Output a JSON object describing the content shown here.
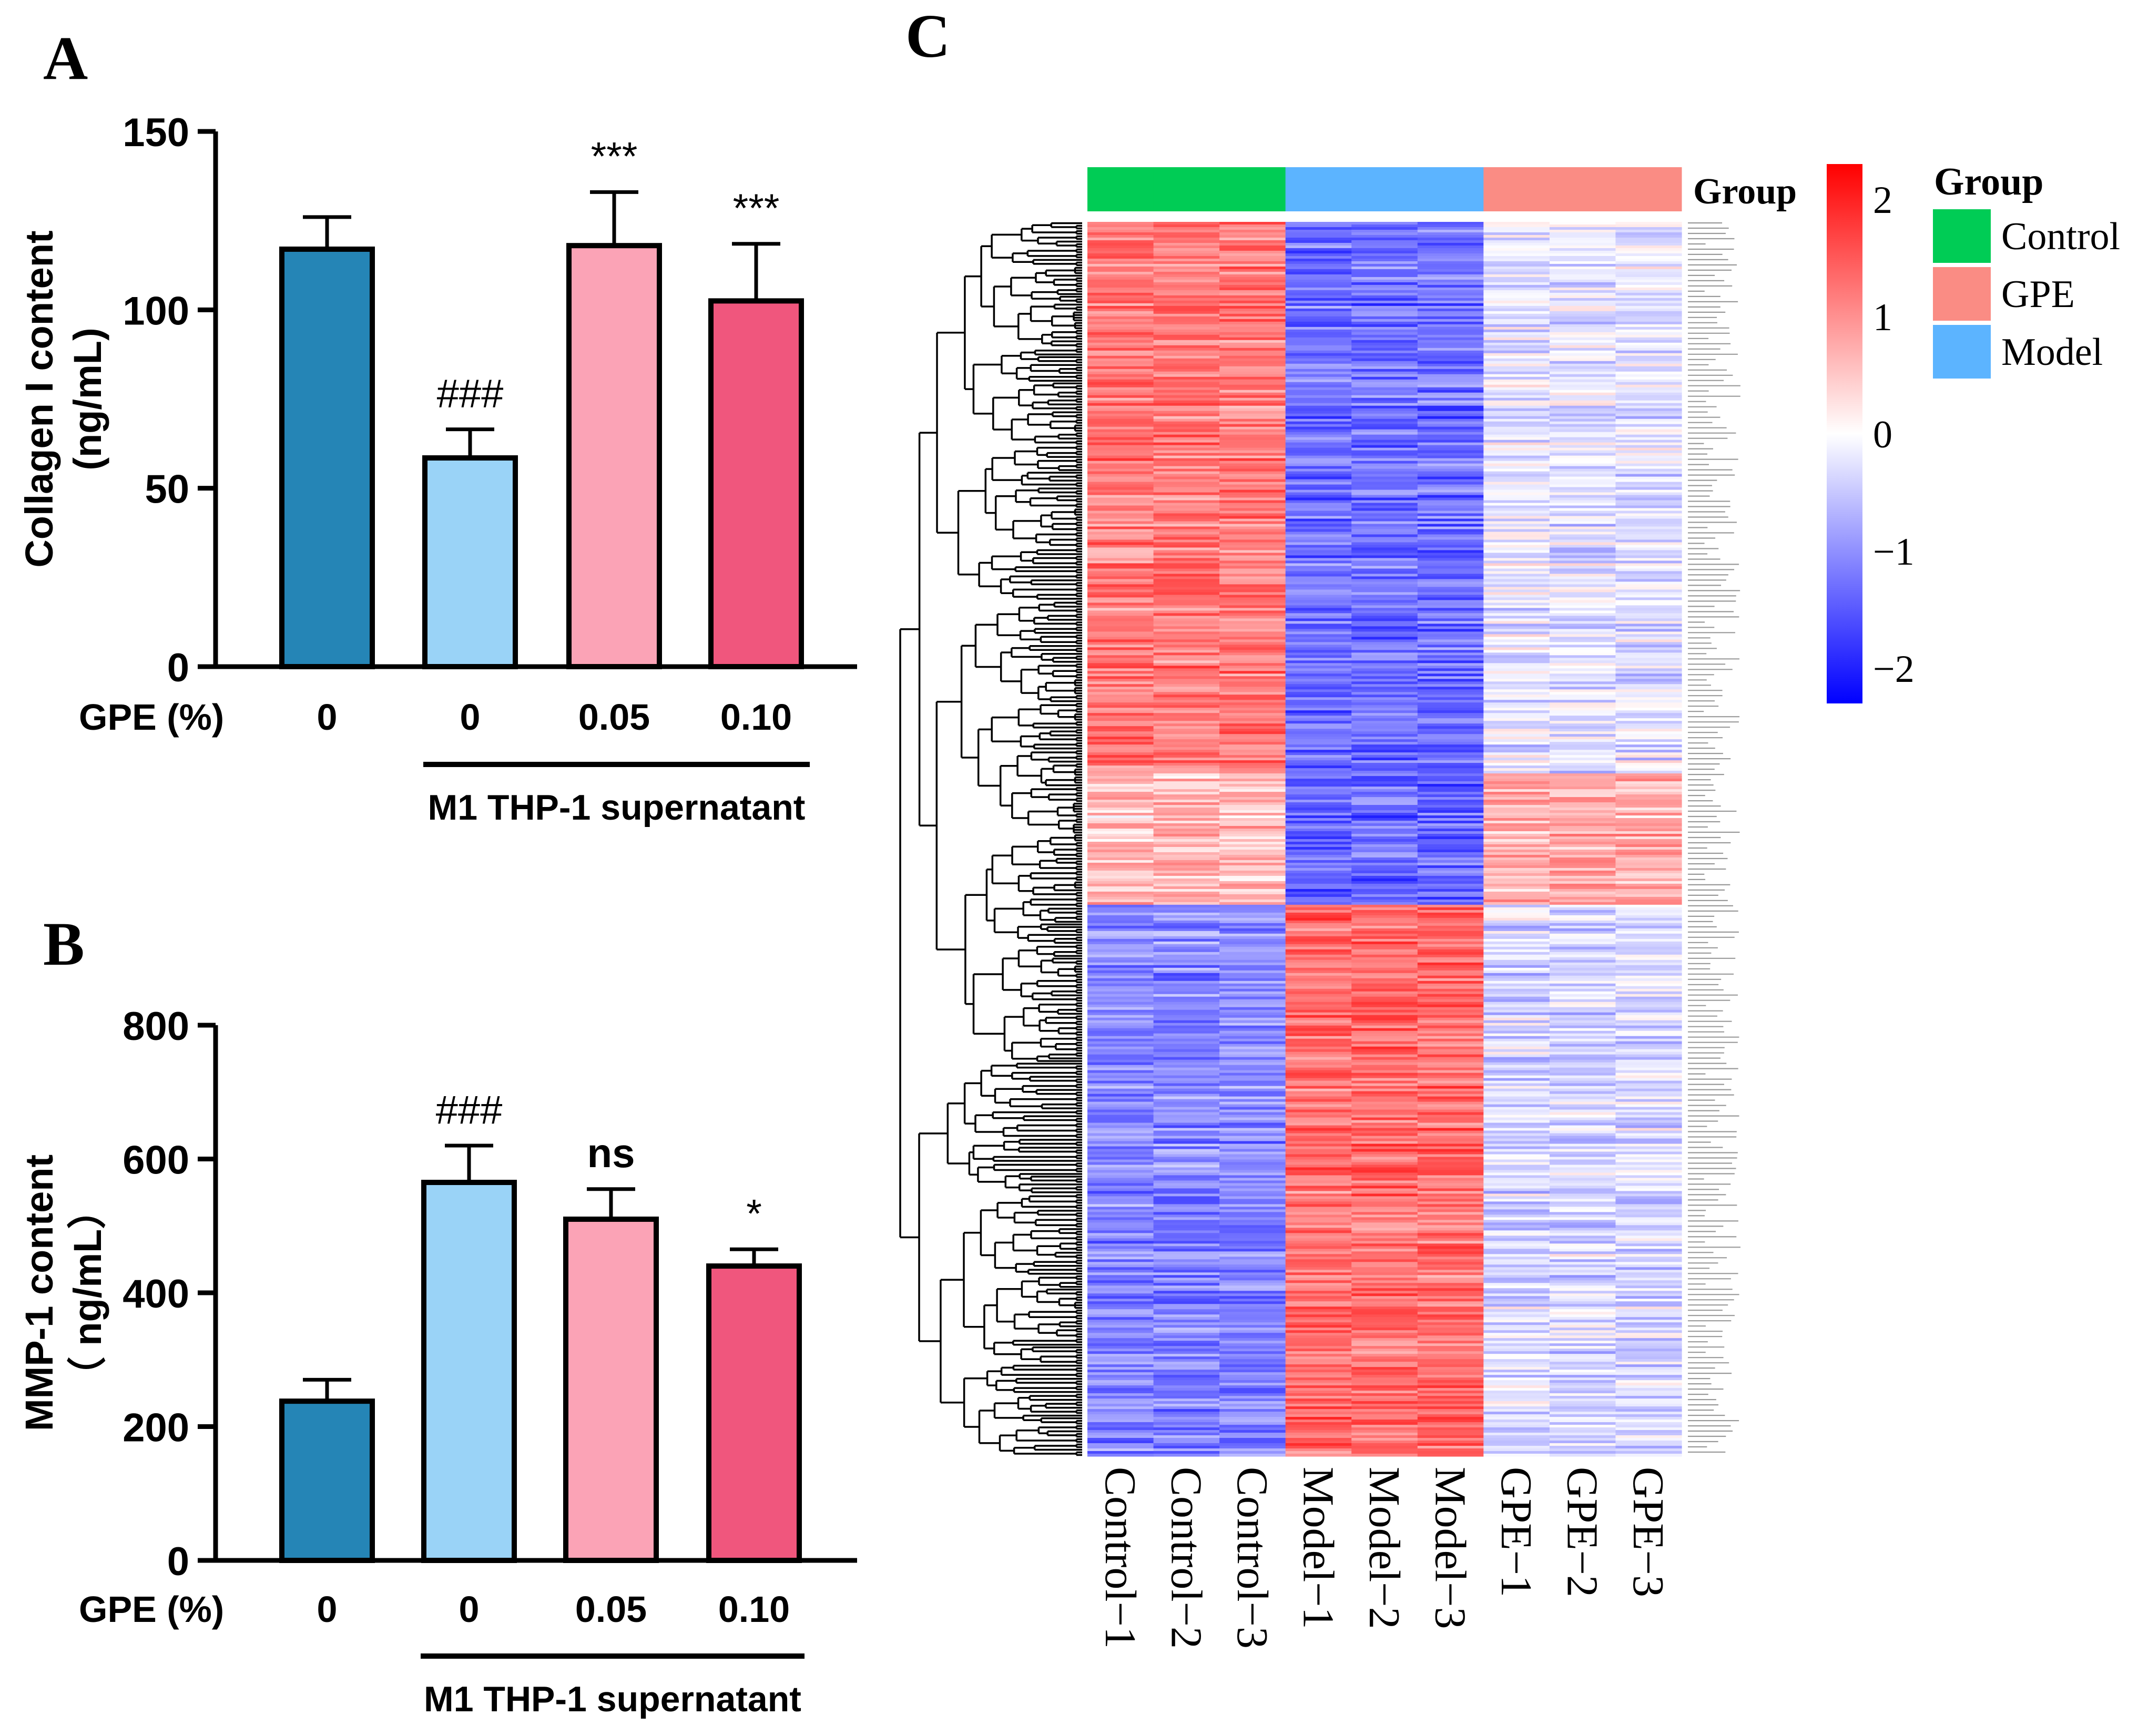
{
  "chart_data": [
    {
      "panel": "A",
      "type": "bar",
      "ylabel_line1": "Collagen I content",
      "ylabel_line2": "(ng/mL)",
      "ylim": [
        0,
        150
      ],
      "yticks": [
        0,
        50,
        100,
        150
      ],
      "xlabel_prefix": "GPE (%)",
      "categories": [
        "0",
        "0",
        "0.05",
        "0.10"
      ],
      "values": [
        117,
        58.5,
        118,
        102.5
      ],
      "errors": [
        9,
        8,
        15,
        16
      ],
      "annotations": [
        "",
        "###",
        "***",
        "***"
      ],
      "bracket_label": "M1 THP-1 supernatant",
      "bar_colors": [
        "#2585B6",
        "#9AD3F7",
        "#FBA3B6",
        "#F0567D"
      ]
    },
    {
      "panel": "B",
      "type": "bar",
      "ylabel_line1": "MMP-1 content",
      "ylabel_line2": "（ ng/mL）",
      "ylim": [
        0,
        800
      ],
      "yticks": [
        0,
        200,
        400,
        600,
        800
      ],
      "xlabel_prefix": "GPE (%)",
      "categories": [
        "0",
        "0",
        "0.05",
        "0.10"
      ],
      "values": [
        238,
        565,
        510,
        440
      ],
      "errors": [
        32,
        55,
        45,
        25
      ],
      "annotations": [
        "",
        "###",
        "ns",
        "*"
      ],
      "bracket_label": "M1 THP-1 supernatant",
      "bar_colors": [
        "#2585B6",
        "#9AD3F7",
        "#FBA3B6",
        "#F0567D"
      ]
    },
    {
      "panel": "C",
      "type": "heatmap",
      "samples": [
        "Control−1",
        "Control−2",
        "Control−3",
        "Model−1",
        "Model−2",
        "Model−3",
        "GPE−1",
        "GPE−2",
        "GPE−3"
      ],
      "sample_groups": [
        "Control",
        "Control",
        "Control",
        "Model",
        "Model",
        "Model",
        "GPE",
        "GPE",
        "GPE"
      ],
      "group_bar_label": "Group",
      "legend_title": "Group",
      "legend_entries": [
        {
          "name": "Control",
          "color": "#00CC55"
        },
        {
          "name": "GPE",
          "color": "#FA8C84"
        },
        {
          "name": "Model",
          "color": "#5CB4FF"
        }
      ],
      "colorbar_ticks": [
        "2",
        "1",
        "0",
        "−1",
        "−2"
      ],
      "colorbar_range": [
        -2.3,
        2.3
      ],
      "colors": {
        "low": "#0000FF",
        "mid": "#FFFFFF",
        "high": "#FF0000"
      },
      "cluster_summary": [
        {
          "rows": 210,
          "control": 1.2,
          "model": -1.3,
          "gpe": -0.25
        },
        {
          "rows": 50,
          "control": 0.55,
          "model": -1.4,
          "gpe": 0.7
        },
        {
          "rows": 210,
          "control": -1.1,
          "model": 1.3,
          "gpe": -0.35
        }
      ]
    }
  ],
  "panel_labels": {
    "a": "A",
    "b": "B",
    "c": "C"
  }
}
